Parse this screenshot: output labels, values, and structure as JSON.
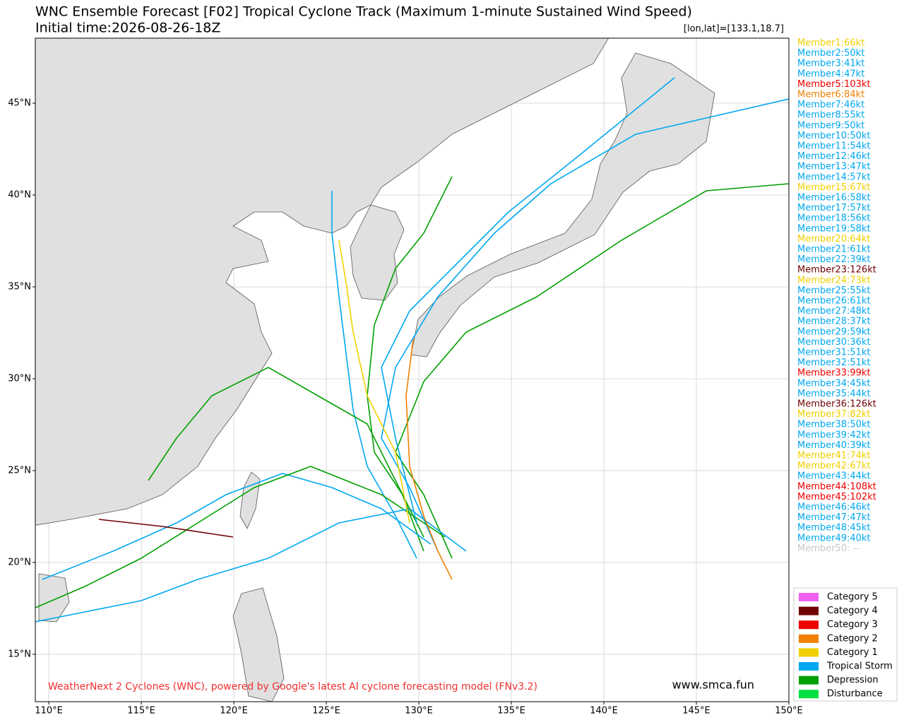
{
  "header": {
    "title": "WNC Ensemble Forecast [F02] Tropical Cyclone Track (Maximum 1-minute Sustained Wind Speed)",
    "subtitle": "Initial time:2026-08-26-18Z",
    "position": "[lon,lat]=[133.1,18.7]"
  },
  "map": {
    "xlim": [
      109.27,
      150
    ],
    "ylim": [
      12.42,
      48.54
    ],
    "xticks": [
      {
        "value": 110,
        "label": "110°E"
      },
      {
        "value": 115,
        "label": "115°E"
      },
      {
        "value": 120,
        "label": "120°E"
      },
      {
        "value": 125,
        "label": "125°E"
      },
      {
        "value": 130,
        "label": "130°E"
      },
      {
        "value": 135,
        "label": "135°E"
      },
      {
        "value": 140,
        "label": "140°E"
      },
      {
        "value": 145,
        "label": "145°E"
      },
      {
        "value": 150,
        "label": "150°E"
      }
    ],
    "yticks": [
      {
        "value": 15,
        "label": "15°N"
      },
      {
        "value": 20,
        "label": "20°N"
      },
      {
        "value": 25,
        "label": "25°N"
      },
      {
        "value": 30,
        "label": "30°N"
      },
      {
        "value": 35,
        "label": "35°N"
      },
      {
        "value": 40,
        "label": "40°N"
      },
      {
        "value": 45,
        "label": "45°N"
      }
    ],
    "grid": true
  },
  "members": [
    {
      "label": "Member1:66kt",
      "color": "#f0d000"
    },
    {
      "label": "Member2:50kt",
      "color": "#00a8f0"
    },
    {
      "label": "Member3:41kt",
      "color": "#00a8f0"
    },
    {
      "label": "Member4:47kt",
      "color": "#00a8f0"
    },
    {
      "label": "Member5:103kt",
      "color": "#f00000"
    },
    {
      "label": "Member6:84kt",
      "color": "#f08000"
    },
    {
      "label": "Member7:46kt",
      "color": "#00a8f0"
    },
    {
      "label": "Member8:55kt",
      "color": "#00a8f0"
    },
    {
      "label": "Member9:50kt",
      "color": "#00a8f0"
    },
    {
      "label": "Member10:50kt",
      "color": "#00a8f0"
    },
    {
      "label": "Member11:54kt",
      "color": "#00a8f0"
    },
    {
      "label": "Member12:46kt",
      "color": "#00a8f0"
    },
    {
      "label": "Member13:47kt",
      "color": "#00a8f0"
    },
    {
      "label": "Member14:57kt",
      "color": "#00a8f0"
    },
    {
      "label": "Member15:67kt",
      "color": "#f0d000"
    },
    {
      "label": "Member16:58kt",
      "color": "#00a8f0"
    },
    {
      "label": "Member17:57kt",
      "color": "#00a8f0"
    },
    {
      "label": "Member18:56kt",
      "color": "#00a8f0"
    },
    {
      "label": "Member19:58kt",
      "color": "#00a8f0"
    },
    {
      "label": "Member20:64kt",
      "color": "#f0d000"
    },
    {
      "label": "Member21:61kt",
      "color": "#00a8f0"
    },
    {
      "label": "Member22:39kt",
      "color": "#00a8f0"
    },
    {
      "label": "Member23:126kt",
      "color": "#700000"
    },
    {
      "label": "Member24:73kt",
      "color": "#f0d000"
    },
    {
      "label": "Member25:55kt",
      "color": "#00a8f0"
    },
    {
      "label": "Member26:61kt",
      "color": "#00a8f0"
    },
    {
      "label": "Member27:48kt",
      "color": "#00a8f0"
    },
    {
      "label": "Member28:37kt",
      "color": "#00a8f0"
    },
    {
      "label": "Member29:59kt",
      "color": "#00a8f0"
    },
    {
      "label": "Member30:36kt",
      "color": "#00a8f0"
    },
    {
      "label": "Member31:51kt",
      "color": "#00a8f0"
    },
    {
      "label": "Member32:51kt",
      "color": "#00a8f0"
    },
    {
      "label": "Member33:99kt",
      "color": "#f00000"
    },
    {
      "label": "Member34:45kt",
      "color": "#00a8f0"
    },
    {
      "label": "Member35:44kt",
      "color": "#00a8f0"
    },
    {
      "label": "Member36:126kt",
      "color": "#700000"
    },
    {
      "label": "Member37:82kt",
      "color": "#f0d000"
    },
    {
      "label": "Member38:50kt",
      "color": "#00a8f0"
    },
    {
      "label": "Member39:42kt",
      "color": "#00a8f0"
    },
    {
      "label": "Member40:39kt",
      "color": "#00a8f0"
    },
    {
      "label": "Member41:74kt",
      "color": "#f0d000"
    },
    {
      "label": "Member42:67kt",
      "color": "#f0d000"
    },
    {
      "label": "Member43:44kt",
      "color": "#00a8f0"
    },
    {
      "label": "Member44:108kt",
      "color": "#f00000"
    },
    {
      "label": "Member45:102kt",
      "color": "#f00000"
    },
    {
      "label": "Member46:46kt",
      "color": "#00a8f0"
    },
    {
      "label": "Member47:47kt",
      "color": "#00a8f0"
    },
    {
      "label": "Member48:45kt",
      "color": "#00a8f0"
    },
    {
      "label": "Member49:40kt",
      "color": "#00a8f0"
    },
    {
      "label": "Member50: --",
      "color": "#c8c8c8"
    }
  ],
  "legend": [
    {
      "label": "Category 5",
      "color": "#f060f0"
    },
    {
      "label": "Category 4",
      "color": "#700000"
    },
    {
      "label": "Category 3",
      "color": "#f00000"
    },
    {
      "label": "Category 2",
      "color": "#f08000"
    },
    {
      "label": "Category 1",
      "color": "#f0d000"
    },
    {
      "label": "Tropical Storm",
      "color": "#00a8f0"
    },
    {
      "label": "Depression",
      "color": "#00a000"
    },
    {
      "label": "Disturbance",
      "color": "#00e040"
    }
  ],
  "footer": {
    "credit": "WeatherNext 2 Cyclones (WNC), powered by Google's latest AI cyclone forecasting model (FNv3.2)",
    "site": "www.smca.fun"
  }
}
